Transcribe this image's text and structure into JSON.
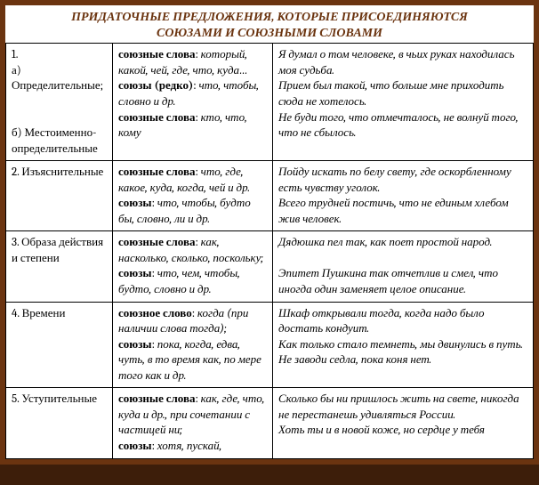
{
  "title_line1": "ПРИДАТОЧНЫЕ ПРЕДЛОЖЕНИЯ, КОТОРЫЕ ПРИСОЕДИНЯЮТСЯ",
  "title_line2": "СОЮЗАМИ И  СОЮЗНЫМИ СЛОВАМИ",
  "colors": {
    "frame": "#6b3410",
    "title_text": "#6b3410",
    "border": "#000000",
    "background": "#ffffff"
  },
  "labels": {
    "conj_words": "союзные слова",
    "conj_word": "союзное слово",
    "conjs": "союзы",
    "conjs_rare": "союзы (редко)"
  },
  "rows": {
    "r1": {
      "num": "1.",
      "a_name": "а) Определительные;",
      "b_name": "б) Местоименно-определительные",
      "cw1": "который, какой, чей, где, что, куда…",
      "cj1": "что, чтобы, словно и др.",
      "cw2": "кто, что, кому",
      "ex1": "Я думал о том человеке, в чьих руках находилась моя судьба.",
      "ex2": "Прием был такой, что больше мне приходить сюда не хотелось.",
      "ex3": "Не буди того, что отмечталось, не волнуй того, что не сбылось."
    },
    "r2": {
      "num": "2.",
      "name": "Изъяснительные",
      "cw": "что, где, какое, куда, когда, чей и др.",
      "cj": "что, чтобы, будто бы, словно, ли и др.",
      "ex1": "Пойду искать по белу свету, где оскорбленному есть чувству уголок.",
      "ex2": " Всего трудней постичь, что не единым хлебом жив человек."
    },
    "r3": {
      "num": "3.",
      "name": "Образа действия и степени",
      "cw": "как, насколько, сколько, поскольку;",
      "cj": "что, чем, чтобы, будто, словно и др.",
      "ex1": "Дядюшка пел так,  как поет простой народ.",
      "ex2": "Эпитет Пушкина так отчетлив и смел, что иногда один заменяет целое описание."
    },
    "r4": {
      "num": "4.",
      "name": "Времени",
      "cw": "когда (при наличии слова ",
      "cw_tail": "тогда",
      "cw_tail2": ");",
      "cj": "пока, когда, едва, чуть, в то время как, по мере того как и др.",
      "ex1": "Шкаф открывали тогда, когда надо было достать кондуит.",
      "ex2": "  Как только стало темнеть, мы двинулись в путь.",
      "ex3": "  Не заводи седла, пока коня нет."
    },
    "r5": {
      "num": "5.",
      "name": "Уступительные",
      "cw": "как, где, что, куда и др., при сочетании с частицей ни;",
      "cj": "хотя, пускай,",
      "ex1": "Сколько бы ни пришлось жить на свете, никогда не перестанешь удивляться России.",
      "ex2": "Хоть ты и в новой коже, но сердце у тебя"
    }
  }
}
